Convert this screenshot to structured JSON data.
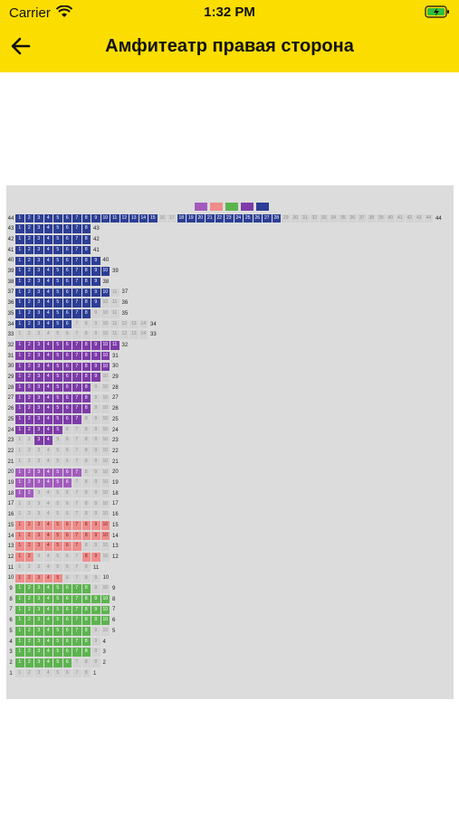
{
  "status": {
    "carrier": "Carrier",
    "time": "1:32 PM"
  },
  "nav": {
    "title": "Амфитеатр правая сторона",
    "back_icon": "arrow-left-icon"
  },
  "colors": {
    "header": "#fbdd00",
    "navy": "#2c3e95",
    "purple": "#7d3ba8",
    "violet": "#a25bbd",
    "pink": "#ef8d8a",
    "green": "#5db44f",
    "free": "#d3d3d3"
  },
  "legend": [
    {
      "name": "legend-violet",
      "color": "#a25bbd",
      "label": ""
    },
    {
      "name": "legend-pink",
      "color": "#ef8d8a",
      "label": ""
    },
    {
      "name": "legend-green",
      "color": "#5db44f",
      "label": ""
    },
    {
      "name": "legend-purple",
      "color": "#7d3ba8",
      "label": ""
    },
    {
      "name": "legend-navy",
      "color": "#2c3e95",
      "label": ""
    }
  ],
  "rows": [
    {
      "label": "44",
      "seats": 44,
      "taken": [
        1,
        2,
        3,
        4,
        5,
        6,
        7,
        8,
        9,
        10,
        11,
        12,
        13,
        14,
        15,
        18,
        19,
        20,
        21,
        22,
        23,
        24,
        25,
        26,
        27,
        28
      ],
      "cls": "s-navy"
    },
    {
      "label": "43",
      "seats": 8,
      "taken": [
        1,
        2,
        3,
        4,
        5,
        6,
        7,
        8
      ],
      "cls": "s-navy"
    },
    {
      "label": "42",
      "seats": 8,
      "taken": [
        1,
        2,
        3,
        4,
        5,
        6,
        7,
        8
      ],
      "cls": "s-navy"
    },
    {
      "label": "41",
      "seats": 8,
      "taken": [
        1,
        2,
        3,
        4,
        5,
        6,
        7,
        8
      ],
      "cls": "s-navy"
    },
    {
      "label": "40",
      "seats": 9,
      "taken": [
        1,
        2,
        3,
        4,
        5,
        6,
        7,
        8,
        9
      ],
      "cls": "s-navy"
    },
    {
      "label": "39",
      "seats": 10,
      "taken": [
        1,
        2,
        3,
        4,
        5,
        6,
        7,
        8,
        9,
        10
      ],
      "cls": "s-navy"
    },
    {
      "label": "38",
      "seats": 9,
      "taken": [
        1,
        2,
        3,
        4,
        5,
        6,
        7,
        8,
        9
      ],
      "cls": "s-navy"
    },
    {
      "label": "37",
      "seats": 11,
      "taken": [
        1,
        2,
        3,
        4,
        5,
        6,
        7,
        8,
        9,
        10
      ],
      "cls": "s-navy"
    },
    {
      "label": "36",
      "seats": 11,
      "taken": [
        1,
        2,
        3,
        4,
        5,
        6,
        7,
        8,
        9
      ],
      "cls": "s-navy"
    },
    {
      "label": "35",
      "seats": 11,
      "taken": [
        1,
        2,
        3,
        4,
        5,
        6,
        7,
        8
      ],
      "cls": "s-navy"
    },
    {
      "label": "34",
      "seats": 14,
      "taken": [
        1,
        2,
        3,
        4,
        5,
        6
      ],
      "cls": "s-navy"
    },
    {
      "label": "33",
      "seats": 14,
      "taken": [],
      "cls": "s-navy"
    },
    {
      "label": "32",
      "seats": 11,
      "taken": [
        1,
        2,
        3,
        4,
        5,
        6,
        7,
        8,
        9,
        10,
        11
      ],
      "cls": "s-purple"
    },
    {
      "label": "31",
      "seats": 10,
      "taken": [
        1,
        2,
        3,
        4,
        5,
        6,
        7,
        8,
        9,
        10
      ],
      "cls": "s-purple"
    },
    {
      "label": "30",
      "seats": 10,
      "taken": [
        1,
        2,
        3,
        4,
        5,
        6,
        7,
        8,
        9,
        10
      ],
      "cls": "s-purple"
    },
    {
      "label": "29",
      "seats": 10,
      "taken": [
        1,
        2,
        3,
        4,
        5,
        6,
        7,
        8,
        9
      ],
      "cls": "s-purple"
    },
    {
      "label": "28",
      "seats": 10,
      "taken": [
        1,
        2,
        3,
        4,
        5,
        6,
        7,
        8
      ],
      "cls": "s-purple"
    },
    {
      "label": "27",
      "seats": 10,
      "taken": [
        1,
        2,
        3,
        4,
        5,
        6,
        7,
        8
      ],
      "cls": "s-purple"
    },
    {
      "label": "26",
      "seats": 10,
      "taken": [
        1,
        2,
        3,
        4,
        5,
        6,
        7,
        8
      ],
      "cls": "s-purple"
    },
    {
      "label": "25",
      "seats": 10,
      "taken": [
        1,
        2,
        3,
        4,
        5,
        6,
        7
      ],
      "cls": "s-purple"
    },
    {
      "label": "24",
      "seats": 10,
      "taken": [
        1,
        2,
        3,
        4,
        5
      ],
      "cls": "s-purple"
    },
    {
      "label": "23",
      "seats": 10,
      "taken": [
        3,
        4
      ],
      "cls": "s-purple"
    },
    {
      "label": "22",
      "seats": 10,
      "taken": [],
      "cls": "s-violet"
    },
    {
      "label": "21",
      "seats": 10,
      "taken": [],
      "cls": "s-violet"
    },
    {
      "label": "20",
      "seats": 10,
      "taken": [
        1,
        2,
        3,
        4,
        5,
        6,
        7
      ],
      "cls": "s-violet"
    },
    {
      "label": "19",
      "seats": 10,
      "taken": [
        1,
        2,
        3,
        4,
        5,
        6
      ],
      "cls": "s-violet"
    },
    {
      "label": "18",
      "seats": 10,
      "taken": [
        1,
        2
      ],
      "cls": "s-violet"
    },
    {
      "label": "17",
      "seats": 10,
      "taken": [],
      "cls": "s-violet"
    },
    {
      "label": "16",
      "seats": 10,
      "taken": [],
      "cls": "s-violet"
    },
    {
      "label": "15",
      "seats": 10,
      "taken": [
        1,
        2,
        3,
        4,
        5,
        6,
        7,
        8,
        9,
        10
      ],
      "cls": "s-pink"
    },
    {
      "label": "14",
      "seats": 10,
      "taken": [
        1,
        2,
        3,
        4,
        5,
        6,
        7,
        8,
        9,
        10
      ],
      "cls": "s-pink"
    },
    {
      "label": "13",
      "seats": 10,
      "taken": [
        1,
        2,
        3,
        4,
        5,
        6,
        7
      ],
      "cls": "s-pink"
    },
    {
      "label": "12",
      "seats": 10,
      "taken": [
        1,
        2,
        8,
        9
      ],
      "cls": "s-pink"
    },
    {
      "label": "11",
      "seats": 8,
      "taken": [],
      "cls": "s-pink"
    },
    {
      "label": "10",
      "seats": 9,
      "taken": [
        1,
        2,
        3,
        4,
        5
      ],
      "cls": "s-pink"
    },
    {
      "label": "9",
      "seats": 10,
      "taken": [
        1,
        2,
        3,
        4,
        5,
        6,
        7,
        8
      ],
      "cls": "s-green"
    },
    {
      "label": "8",
      "seats": 10,
      "taken": [
        1,
        2,
        3,
        4,
        5,
        6,
        7,
        8,
        9,
        10
      ],
      "cls": "s-green"
    },
    {
      "label": "7",
      "seats": 10,
      "taken": [
        1,
        2,
        3,
        4,
        5,
        6,
        7,
        8,
        9,
        10
      ],
      "cls": "s-green"
    },
    {
      "label": "6",
      "seats": 10,
      "taken": [
        1,
        2,
        3,
        4,
        5,
        6,
        7,
        8,
        9,
        10
      ],
      "cls": "s-green"
    },
    {
      "label": "5",
      "seats": 10,
      "taken": [
        1,
        2,
        3,
        4,
        5,
        6,
        7,
        8
      ],
      "cls": "s-green"
    },
    {
      "label": "4",
      "seats": 9,
      "taken": [
        1,
        2,
        3,
        4,
        5,
        6,
        7,
        8
      ],
      "cls": "s-green"
    },
    {
      "label": "3",
      "seats": 9,
      "taken": [
        1,
        2,
        3,
        4,
        5,
        6,
        7,
        8
      ],
      "cls": "s-green"
    },
    {
      "label": "2",
      "seats": 9,
      "taken": [
        1,
        2,
        3,
        4,
        5,
        6
      ],
      "cls": "s-green"
    },
    {
      "label": "1",
      "seats": 8,
      "taken": [],
      "cls": "s-green"
    }
  ]
}
